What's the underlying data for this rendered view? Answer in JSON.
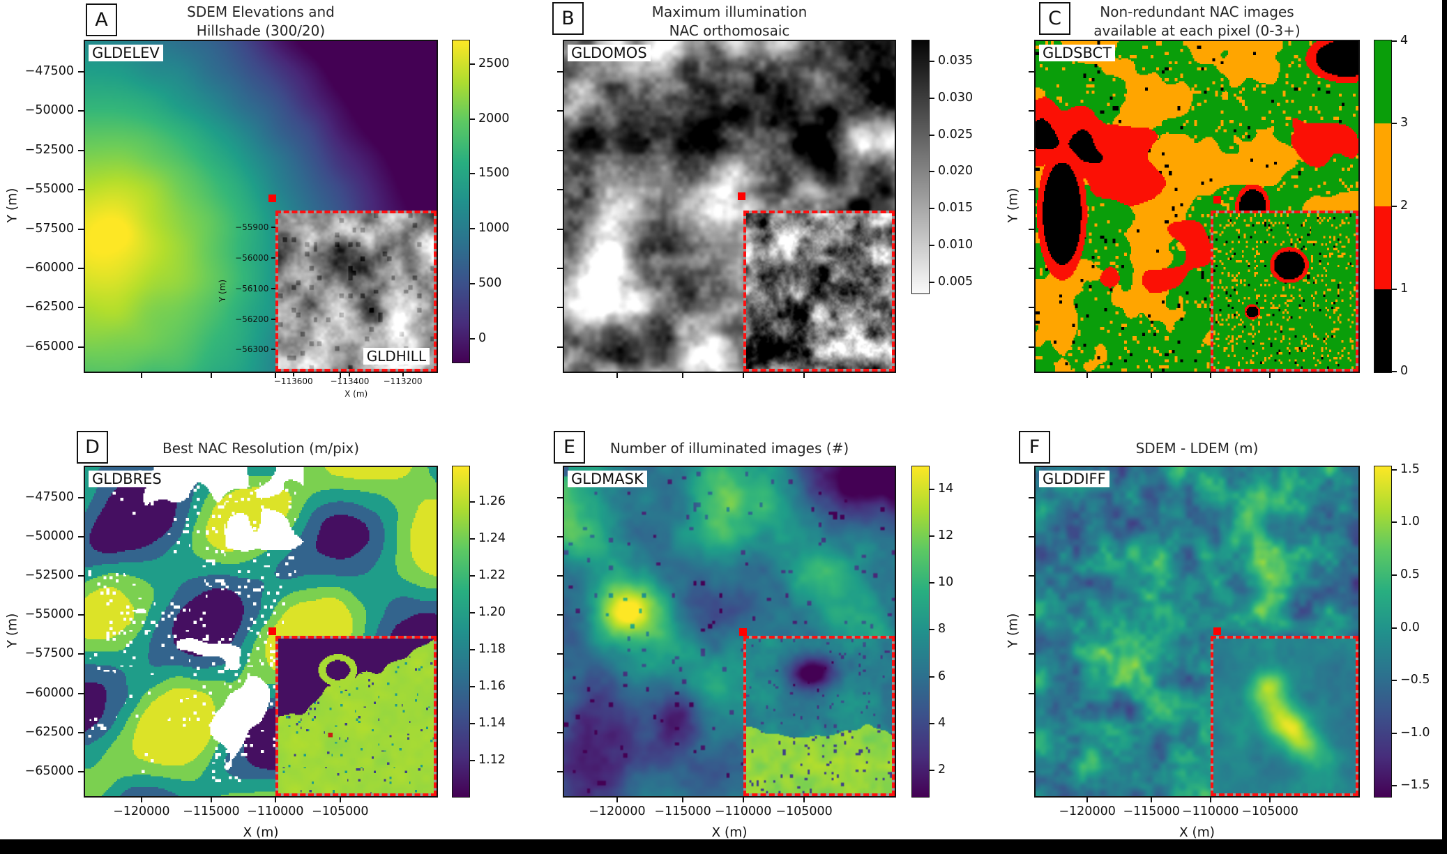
{
  "figure": {
    "background": "#ffffff",
    "bottom_bar_color": "#000000",
    "right_bar_color": "#000000",
    "marker_color": "#ff0000",
    "inset_border_color": "#ff1010"
  },
  "shared_axes": {
    "x_label": "X (m)",
    "y_label": "Y (m)",
    "x_ticks": [
      "−120000",
      "−115000",
      "−110000",
      "−105000"
    ],
    "y_ticks": [
      "−47500",
      "−50000",
      "−52500",
      "−55000",
      "−57500",
      "−60000",
      "−62500",
      "−65000"
    ]
  },
  "chart_data": {
    "type": "heatmap",
    "layout": "2x3 grid of lunar map rasters, each with its own colorbar and a red-dashed zoom inset marked by a red square",
    "x_range_m": [
      -124400,
      -97600
    ],
    "y_range_m": [
      -66600,
      -45500
    ],
    "panels": [
      {
        "id": "A",
        "title": "SDEM Elevations and\nHillshade (300/20)",
        "tag": "GLDELEV",
        "colormap": "viridis",
        "colorbar": {
          "ticks": [
            "2500",
            "2000",
            "1500",
            "1000",
            "500",
            "0"
          ]
        },
        "y_axis_label": "Y (m)",
        "show_y_tick_labels": true,
        "show_x_tick_labels": false,
        "inset": {
          "tag": "GLDHILL",
          "content": "grayscale hillshade of crater region",
          "y_label": "Y (m)",
          "x_label": "X (m)",
          "y_ticks": [
            "−55900",
            "−56000",
            "−56100",
            "−56200",
            "−56300"
          ],
          "x_ticks": [
            "−113600",
            "−113400",
            "−113200"
          ]
        }
      },
      {
        "id": "B",
        "title": "Maximum illumination\nNAC orthomosaic",
        "tag": "GLDOMOS",
        "colormap": "gray_r",
        "colorbar": {
          "ticks": [
            "0.035",
            "0.030",
            "0.025",
            "0.020",
            "0.015",
            "0.010",
            "0.005"
          ]
        },
        "y_axis_label": null,
        "show_y_tick_labels": false,
        "show_x_tick_labels": false,
        "inset": {
          "content": "grayscale orthomosaic zoom of crater region"
        }
      },
      {
        "id": "C",
        "title": "Non-redundant NAC images\navailable at each pixel (0-3+)",
        "tag": "GLDSBCT",
        "colormap": "discrete",
        "classes": [
          {
            "value": "3+",
            "color": "#0a9e0a"
          },
          {
            "value": "2",
            "color": "#ffa500"
          },
          {
            "value": "1",
            "color": "#fb1005"
          },
          {
            "value": "0",
            "color": "#000000"
          }
        ],
        "colorbar": {
          "ticks": [
            "4",
            "3",
            "2",
            "1",
            "0"
          ]
        },
        "y_axis_label": "Y (m)",
        "show_y_tick_labels": false,
        "show_x_tick_labels": false,
        "inset": {
          "content": "mostly-green class map with black crater blobs ringed in red"
        }
      },
      {
        "id": "D",
        "title": "Best NAC Resolution (m/pix)",
        "tag": "GLDBRES",
        "colormap": "viridis",
        "colorbar": {
          "ticks": [
            "1.26",
            "1.24",
            "1.22",
            "1.20",
            "1.18",
            "1.16",
            "1.14",
            "1.12"
          ]
        },
        "y_axis_label": "Y (m)",
        "show_y_tick_labels": true,
        "show_x_tick_labels": true,
        "inset": {
          "content": "uniform yellow-green resolution zone with dark purple wedge"
        }
      },
      {
        "id": "E",
        "title": "Number of illuminated images (#)",
        "tag": "GLDMASK",
        "colormap": "viridis",
        "colorbar": {
          "ticks": [
            "14",
            "12",
            "10",
            "8",
            "6",
            "4",
            "2"
          ]
        },
        "y_axis_label": null,
        "show_y_tick_labels": false,
        "show_x_tick_labels": true,
        "inset": {
          "content": "bright yellow-green lower half, teal upper half with dark purple crater blob"
        }
      },
      {
        "id": "F",
        "title": "SDEM - LDEM (m)",
        "tag": "GLDDIFF",
        "colormap": "viridis",
        "colorbar": {
          "ticks": [
            "1.5",
            "1.0",
            "0.5",
            "0.0",
            "−0.5",
            "−1.0",
            "−1.5"
          ]
        },
        "y_axis_label": "Y (m)",
        "show_y_tick_labels": false,
        "show_x_tick_labels": true,
        "inset": {
          "content": "teal difference map with bright yellow diagonal ridge"
        }
      }
    ]
  }
}
